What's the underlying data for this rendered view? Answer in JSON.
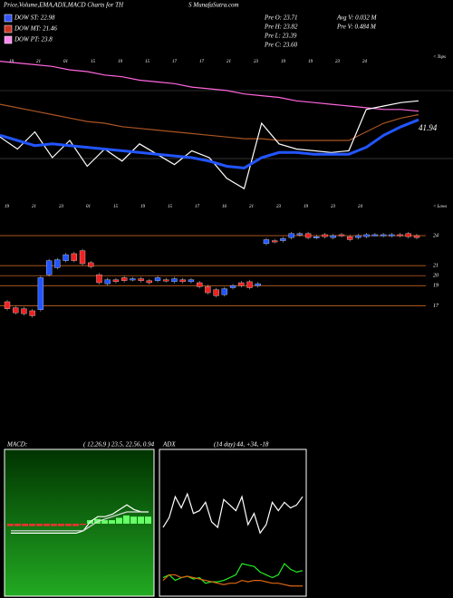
{
  "header": {
    "title": "Price,Volume,EMA,ADX,MACD Charts for TH",
    "site": "S MunafaSutra.com",
    "legend": [
      {
        "label": "DOW ST: 22.98",
        "color": "#3355ff"
      },
      {
        "label": "DOW MT: 21.46",
        "color": "#cc3322"
      },
      {
        "label": "DOW PT: 23.8",
        "color": "#ff88ee"
      }
    ],
    "stats": [
      "Pre  O: 23.71",
      "Pre  H: 23.82",
      "Pre  L: 23.39",
      "Pre  C: 23.60",
      "Avg V: 0.032  M",
      "Pre  V: 0.484  M"
    ]
  },
  "chart_data": [
    {
      "type": "line",
      "annotation": "41.94",
      "label_top": "< Tops",
      "label_bottom": "< Lows",
      "dates_top": [
        "19",
        "21",
        "01",
        "15",
        "19",
        "15",
        "17",
        "17",
        "21",
        "23",
        "19",
        "19",
        "23",
        "24"
      ],
      "dates_bottom": [
        "19",
        "21",
        "23",
        "01",
        "15",
        "19",
        "15",
        "17",
        "16",
        "21",
        "23",
        "19",
        "23",
        "24"
      ],
      "ylim": [
        0,
        100
      ],
      "series": [
        {
          "name": "pink",
          "color": "#ff66dd",
          "values": [
            96,
            95,
            94,
            93,
            91,
            90,
            88,
            87,
            85,
            84,
            83,
            81,
            80,
            79,
            77,
            76,
            75,
            73,
            72,
            71,
            70,
            69,
            68,
            68,
            67
          ]
        },
        {
          "name": "brown",
          "color": "#aa5522",
          "values": [
            71,
            69,
            67,
            65,
            63,
            61,
            60,
            58,
            57,
            56,
            55,
            54,
            53,
            52,
            51,
            51,
            50,
            50,
            50,
            50,
            50,
            55,
            60,
            63,
            65
          ]
        },
        {
          "name": "white",
          "color": "#ffffff",
          "values": [
            52,
            45,
            55,
            40,
            50,
            35,
            45,
            38,
            48,
            42,
            36,
            44,
            40,
            28,
            22,
            60,
            48,
            45,
            44,
            43,
            44,
            68,
            70,
            72,
            73
          ]
        },
        {
          "name": "blue",
          "color": "#2255ff",
          "values": [
            53,
            50,
            47,
            48,
            47,
            46,
            45,
            44,
            43,
            42,
            41,
            40,
            38,
            35,
            34,
            40,
            43,
            43,
            42,
            42,
            42,
            46,
            53,
            58,
            62
          ]
        }
      ]
    },
    {
      "type": "candlestick",
      "ylim": [
        15.5,
        25
      ],
      "yticks": [
        24,
        21,
        20,
        19,
        17
      ],
      "open": [
        17.4,
        16.8,
        16.7,
        16.5,
        16.6,
        20.1,
        20.8,
        21.5,
        22.2,
        22.5,
        21.3,
        20.1,
        19.2,
        19.6,
        19.8,
        19.6,
        19.7,
        19.5,
        19.5,
        19.6,
        19.4,
        19.6,
        19.4,
        19.3,
        18.9,
        18.6,
        18.1,
        18.8,
        19.3,
        19.4,
        19.0,
        23.2,
        23.5,
        23.5,
        23.8,
        24.1,
        24.2,
        23.8,
        24.1,
        23.8,
        24.1,
        23.9,
        23.8,
        23.9,
        24.1,
        24.0,
        24.0,
        24.1,
        24.2,
        24.0
      ],
      "close": [
        16.7,
        16.3,
        16.2,
        16.0,
        19.8,
        21.5,
        21.6,
        22.1,
        21.5,
        21.2,
        20.9,
        19.3,
        19.6,
        19.4,
        19.5,
        19.7,
        19.5,
        19.3,
        19.8,
        19.5,
        19.7,
        19.4,
        19.6,
        18.9,
        18.3,
        18.0,
        18.7,
        19.0,
        19.0,
        18.8,
        19.2,
        23.6,
        23.4,
        23.7,
        24.2,
        24.2,
        23.8,
        23.9,
        23.9,
        24.0,
        24.0,
        23.6,
        24.0,
        24.1,
        24.1,
        24.1,
        24.1,
        24.0,
        23.9,
        23.8
      ]
    },
    {
      "type": "macd",
      "title": "MACD:",
      "params": "( 12,26,9 ) 23.5, 22.56, 0.94",
      "ylim": [
        -3,
        3
      ],
      "series": [
        {
          "name": "macd",
          "color": "#ffffff",
          "values": [
            -0.4,
            -0.4,
            -0.4,
            -0.4,
            -0.4,
            -0.4,
            -0.4,
            -0.4,
            -0.4,
            -0.4,
            -0.3,
            0.1,
            0.3,
            0.3,
            0.4,
            0.6,
            0.8,
            0.6,
            0.5,
            0.5
          ]
        },
        {
          "name": "signal",
          "color": "#dddddd",
          "values": [
            -0.3,
            -0.3,
            -0.3,
            -0.3,
            -0.3,
            -0.3,
            -0.3,
            -0.3,
            -0.3,
            -0.3,
            -0.3,
            -0.1,
            0.1,
            0.2,
            0.3,
            0.4,
            0.5,
            0.5,
            0.5,
            0.5
          ]
        }
      ],
      "histogram": [
        -0.1,
        -0.1,
        -0.1,
        -0.1,
        -0.1,
        -0.1,
        -0.1,
        -0.1,
        -0.1,
        -0.1,
        -0.05,
        0.15,
        0.2,
        0.15,
        0.15,
        0.25,
        0.35,
        0.3,
        0.3,
        0.3
      ]
    },
    {
      "type": "adx",
      "title": "ADX",
      "params": "(14 day) 44, +34, -18",
      "ylim": [
        0,
        100
      ],
      "series": [
        {
          "name": "plus",
          "color": "#ffffff",
          "values": [
            48,
            55,
            70,
            62,
            72,
            58,
            60,
            66,
            52,
            48,
            68,
            64,
            60,
            70,
            50,
            58,
            44,
            50,
            66,
            60,
            66,
            62,
            64,
            70
          ]
        },
        {
          "name": "adx",
          "color": "#22ee22",
          "values": [
            12,
            14,
            10,
            12,
            13,
            11,
            12,
            8,
            9,
            9,
            10,
            12,
            14,
            22,
            21,
            20,
            16,
            14,
            12,
            14,
            22,
            18,
            16,
            17
          ]
        },
        {
          "name": "minus",
          "color": "#dd6611",
          "values": [
            10,
            14,
            14,
            12,
            13,
            12,
            11,
            10,
            9,
            8,
            7,
            8,
            8,
            10,
            9,
            10,
            10,
            9,
            8,
            8,
            7,
            6,
            6,
            6
          ]
        }
      ]
    }
  ]
}
